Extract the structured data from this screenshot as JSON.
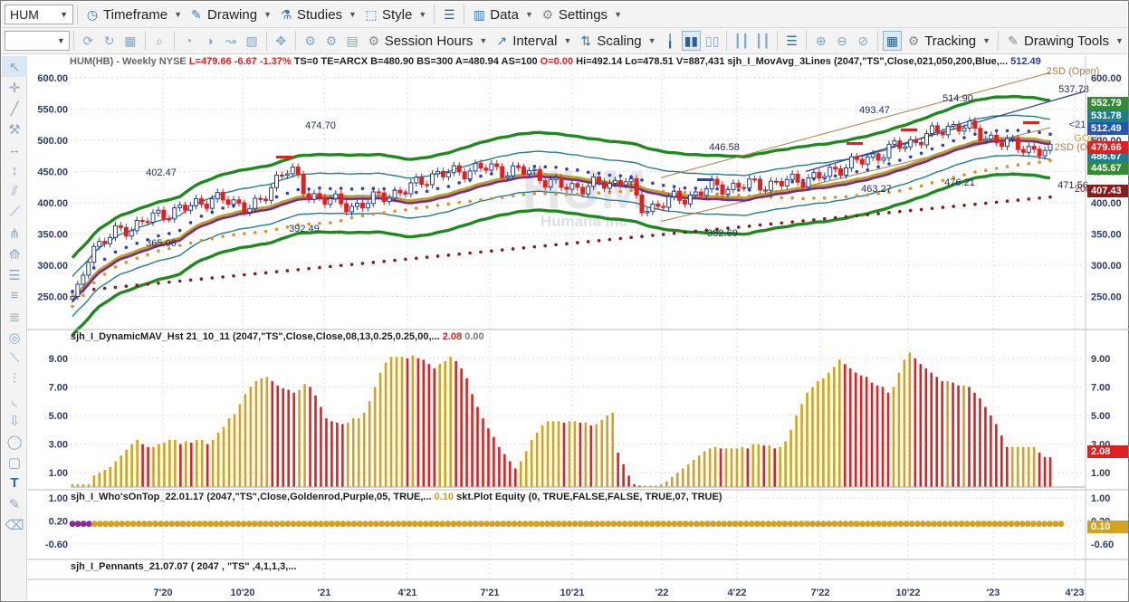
{
  "toolbar1": {
    "symbol": "HUM",
    "items": [
      {
        "label": "Timeframe",
        "icon": "clock-icon"
      },
      {
        "label": "Drawing",
        "icon": "pencil-icon"
      },
      {
        "label": "Studies",
        "icon": "flask-icon"
      },
      {
        "label": "Style",
        "icon": "style-icon"
      },
      {
        "label": "Data",
        "icon": "data-icon"
      },
      {
        "label": "Settings",
        "icon": "gear-icon"
      }
    ]
  },
  "toolbar2": {
    "items": [
      {
        "label": "Session Hours",
        "icon": "session-icon"
      },
      {
        "label": "Interval",
        "icon": "interval-icon"
      },
      {
        "label": "Scaling",
        "icon": "scaling-icon"
      },
      {
        "label": "Tracking",
        "icon": "tracking-icon"
      },
      {
        "label": "Drawing Tools",
        "icon": "drawing-tools-icon"
      }
    ]
  },
  "watermark": {
    "symbol": "HUM",
    "name": "Humana Inc"
  },
  "main_legend": {
    "symbol": "HUM(HB) - Weekly  NYSE",
    "last": "L=479.66",
    "chg": "-6.67",
    "pct": "-1.37%",
    "mid": "TS=0  TE=ARCX  B=480.90  BS=300  A=480.94  AS=100",
    "open": "O=0.00",
    "tail": "Hi=492.14  Lo=478.51  V=887,431  sjh_I_MovAvg_3Lines (2047,\"TS\",Close,021,050,200,Blue,...",
    "mavalue": "512.49"
  },
  "panel2_legend": {
    "text": "sjh_I_DynamicMAV_Hst 21_10_11 (2047,\"TS\",Close,Close,08,13,0.25,0.25,00,...",
    "v1": "2.08",
    "v2": "0.00"
  },
  "panel3_legend": {
    "text": "sjh_I_Who'sOnTop_22.01.17 (2047,\"TS\",Close,Goldenrod,Purple,05, TRUE,...",
    "v1": "0.10",
    "tail": "skt.Plot Equity (0, TRUE,FALSE,FALSE, TRUE,07, TRUE)"
  },
  "panel4_legend": {
    "text": "sjh_I_Pennants_21.07.07 ( 2047 , \"TS\" ,4,1,1,3,..."
  },
  "axis": {
    "price_ticks": [
      "600.00",
      "550.00",
      "500.00",
      "450.00",
      "400.00",
      "350.00",
      "300.00",
      "250.00"
    ],
    "osc_ticks": [
      "9.00",
      "7.00",
      "5.00",
      "3.00",
      "1.00"
    ],
    "wot_ticks": [
      "1.00",
      "0.20",
      "-0.60"
    ],
    "x_ticks": [
      "7'20",
      "10'20",
      "'21",
      "4'21",
      "7'21",
      "10'21",
      "'22",
      "4'22",
      "7'22",
      "10'22",
      "'23",
      "4'23"
    ]
  },
  "annotations": {
    "price_labels": [
      "474.70",
      "402.47",
      "392.49",
      "365.06",
      "446.58",
      "382.69",
      "514.90",
      "493.47",
      "463.27",
      "476.21",
      "537.78",
      "471.56",
      "2SD (Open)",
      "<21",
      "GOLD",
      "2SD (Open)",
      "200"
    ]
  },
  "price_tags": [
    {
      "label": "552.79",
      "color": "#2f8f2f"
    },
    {
      "label": "531.78",
      "color": "#1f7f8f"
    },
    {
      "label": "512.49",
      "color": "#2456b8"
    },
    {
      "label": "486.67",
      "color": "#1f7f8f"
    },
    {
      "label": "479.66",
      "color": "#e02020"
    },
    {
      "label": "445.67",
      "color": "#2f8f2f"
    },
    {
      "label": "407.43",
      "color": "#8b1a1a"
    }
  ],
  "osc_tag": {
    "label": "2.08",
    "color": "#e02020"
  },
  "wot_tag": {
    "label": "0.10",
    "color": "#d4a21c"
  },
  "chart_data": {
    "type": "bar",
    "title": "HUM(HB) - Weekly  NYSE",
    "price_ylim": [
      200,
      620
    ],
    "price_candles_approx": {
      "x": [
        "7'20",
        "10'20",
        "'21",
        "4'21",
        "7'21",
        "10'21",
        "'22",
        "4'22",
        "7'22",
        "10'22",
        "'23",
        "4'23"
      ],
      "close": [
        395,
        430,
        405,
        440,
        450,
        430,
        390,
        420,
        430,
        480,
        500,
        480
      ]
    },
    "oscillator": {
      "name": "sjh_I_DynamicMAV_Hst",
      "ylim": [
        0,
        10
      ],
      "values": [
        0.2,
        0.2,
        0.2,
        0.2,
        0.8,
        1.0,
        1.2,
        1.4,
        1.8,
        2.2,
        2.6,
        3.0,
        3.3,
        3.0,
        2.8,
        2.8,
        3.0,
        3.1,
        3.3,
        3.3,
        3.0,
        3.2,
        3.1,
        3.3,
        3.3,
        3.0,
        3.3,
        3.8,
        4.2,
        4.8,
        5.1,
        5.8,
        6.5,
        7.0,
        7.4,
        7.6,
        7.7,
        7.4,
        7.1,
        6.9,
        6.8,
        6.6,
        6.8,
        7.2,
        7.0,
        6.4,
        5.6,
        4.8,
        4.6,
        4.5,
        4.4,
        4.5,
        4.8,
        4.8,
        5.2,
        6.0,
        7.0,
        8.0,
        8.7,
        9.1,
        9.1,
        9.1,
        9.0,
        9.2,
        9.0,
        8.9,
        8.6,
        8.3,
        8.6,
        8.8,
        9.1,
        8.8,
        8.3,
        7.6,
        6.5,
        5.6,
        4.8,
        4.1,
        3.5,
        2.8,
        2.3,
        1.8,
        1.3,
        1.8,
        2.5,
        3.3,
        3.8,
        4.3,
        4.6,
        4.6,
        4.6,
        4.5,
        4.6,
        4.6,
        4.5,
        4.5,
        4.3,
        4.4,
        4.7,
        5.0,
        5.2,
        2.4,
        1.6,
        0.8,
        0.2,
        0.1,
        0.1,
        0.1,
        0.1,
        0.2,
        0.4,
        0.7,
        1.0,
        1.3,
        1.6,
        1.9,
        2.2,
        2.5,
        2.7,
        2.8,
        2.7,
        2.7,
        2.7,
        2.7,
        2.8,
        2.7,
        3.0,
        3.0,
        2.9,
        2.9,
        2.7,
        2.8,
        3.2,
        4.0,
        5.0,
        5.8,
        6.6,
        7.0,
        7.4,
        7.6,
        8.0,
        8.4,
        8.9,
        8.6,
        8.3,
        8.0,
        7.8,
        7.7,
        7.3,
        7.1,
        7.0,
        6.6,
        7.0,
        8.0,
        8.9,
        9.4,
        9.0,
        8.6,
        8.3,
        8.0,
        7.7,
        7.4,
        7.4,
        7.3,
        7.1,
        7.1,
        7.0,
        6.6,
        6.2,
        5.6,
        5.0,
        4.4,
        3.6,
        2.8,
        2.8,
        2.8,
        2.8,
        2.8,
        2.8,
        2.4,
        2.1,
        2.08
      ]
    },
    "whos_on_top": {
      "ylim": [
        -1,
        1.2
      ],
      "value": 0.1
    }
  }
}
